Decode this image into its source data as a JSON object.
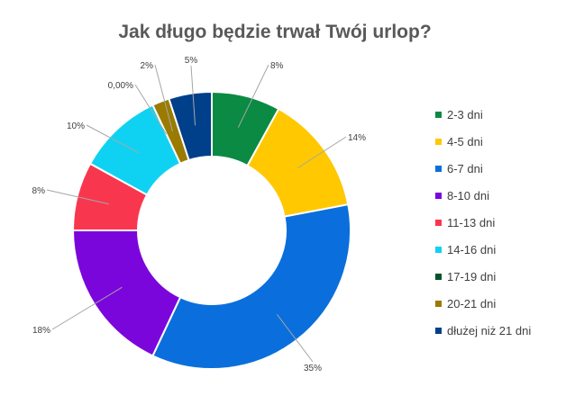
{
  "chart_data": {
    "type": "pie",
    "variant": "donut",
    "title": "Jak długo będzie trwał Twój urlop?",
    "legend_position": "right",
    "categories": [
      "2-3 dni",
      "4-5 dni",
      "6-7 dni",
      "8-10 dni",
      "11-13 dni",
      "14-16 dni",
      "17-19 dni",
      "20-21 dni",
      "dłużej niż 21 dni"
    ],
    "values": [
      8,
      14,
      35,
      18,
      8,
      10,
      0.0,
      2,
      5
    ],
    "value_labels": [
      "8%",
      "14%",
      "35%",
      "18%",
      "8%",
      "10%",
      "0,00%",
      "2%",
      "5%"
    ],
    "colors": [
      "#0b8a43",
      "#ffc800",
      "#0a6fdc",
      "#7a06dc",
      "#f8374f",
      "#0fd2f2",
      "#08522a",
      "#9a7b00",
      "#003f8a"
    ]
  }
}
